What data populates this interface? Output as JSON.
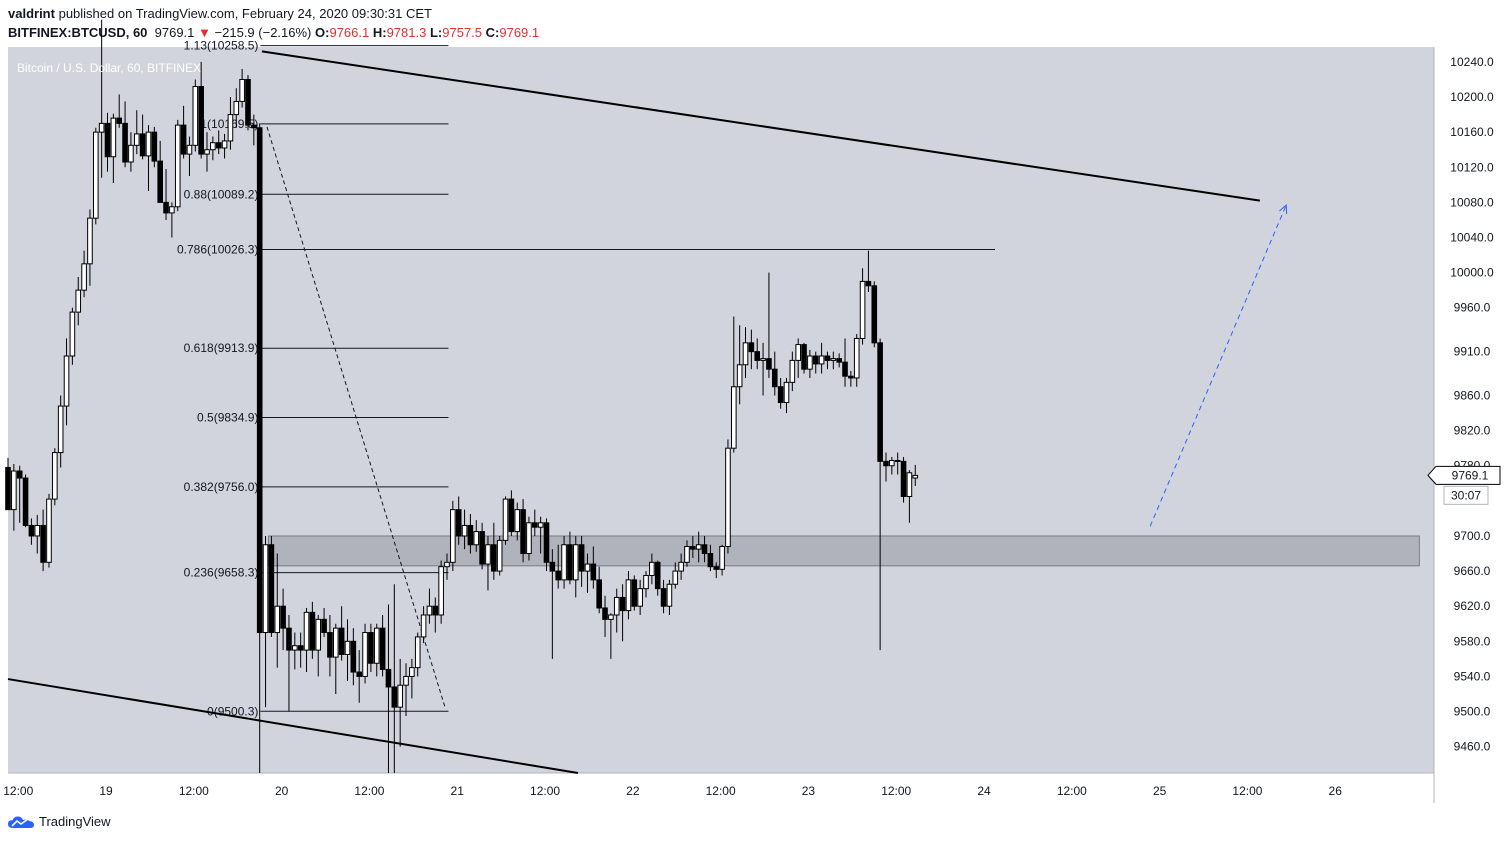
{
  "header": {
    "author": "valdrint",
    "published_text": "published on TradingView.com, February 24, 2020 09:30:31 CET",
    "symbol": "BITFINEX:BTCUSD, 60",
    "last": "9769.1",
    "change_arrow": "▼",
    "change": "−215.9 (−2.16%)",
    "o_label": "O:",
    "o_value": "9766.1",
    "h_label": "H:",
    "h_value": "9781.3",
    "l_label": "L:",
    "l_value": "9757.5",
    "c_label": "C:",
    "c_value": "9769.1"
  },
  "footer": {
    "brand": "TradingView",
    "icon": "tradingview-cloud-icon"
  },
  "chart_data": {
    "type": "candlestick",
    "title": "Bitcoin / U.S. Dollar, 60, BITFINEX",
    "x_tick_labels": [
      "12:00",
      "19",
      "12:00",
      "20",
      "12:00",
      "21",
      "12:00",
      "22",
      "12:00",
      "23",
      "12:00",
      "24",
      "12:00",
      "25",
      "12:00",
      "26"
    ],
    "x_tick_hours": [
      -12,
      0,
      12,
      24,
      36,
      48,
      60,
      72,
      84,
      96,
      108,
      120,
      132,
      144,
      156,
      168
    ],
    "xlim_hours": [
      -13.4,
      181.5
    ],
    "y_tick_labels": [
      "10240.0",
      "10200.0",
      "10160.0",
      "10120.0",
      "10080.0",
      "10040.0",
      "10000.0",
      "9960.0",
      "9910.0",
      "9860.0",
      "9820.0",
      "9780.0",
      "9700.0",
      "9660.0",
      "9620.0",
      "9580.0",
      "9540.0",
      "9500.0",
      "9460.0"
    ],
    "y_ticks": [
      10240,
      10200,
      10160,
      10120,
      10080,
      10040,
      10000,
      9960,
      9910,
      9860,
      9820,
      9780,
      9700,
      9660,
      9620,
      9580,
      9540,
      9500,
      9460
    ],
    "ylim": [
      9430,
      10257
    ],
    "current_price": {
      "label": "9769.1",
      "value": 9769.1,
      "countdown": "30:07"
    },
    "fib_levels": [
      {
        "label": "1.13(10258.5)",
        "value": 10258.5
      },
      {
        "label": "1(10169.5)",
        "value": 10169.5
      },
      {
        "label": "0.88(10089.2)",
        "value": 10089.2
      },
      {
        "label": "0.786(10026.3)",
        "value": 10026.3
      },
      {
        "label": "0.618(9913.9)",
        "value": 9913.9
      },
      {
        "label": "0.5(9834.9)",
        "value": 9834.9
      },
      {
        "label": "0.382(9756.0)",
        "value": 9756.0
      },
      {
        "label": "0.236(9658.3)",
        "value": 9658.3
      },
      {
        "label": "0(9500.3)",
        "value": 9500.3
      }
    ],
    "fib_x_hours": [
      21.1,
      46.8
    ],
    "fib_786_extend_hours": 121.5,
    "support_zone": {
      "from": 9666,
      "to": 9700,
      "x_hours": [
        22.2,
        179.5
      ]
    },
    "trendlines": [
      {
        "name": "upper-trendline",
        "points": [
          [
            21.3,
            10252
          ],
          [
            157.7,
            10082
          ]
        ]
      },
      {
        "name": "lower-trendline",
        "points": [
          [
            -13.4,
            9537
          ],
          [
            64.5,
            9430
          ]
        ]
      }
    ],
    "projection_line": {
      "points": [
        [
          142.7,
          9711
        ],
        [
          161.3,
          10077
        ]
      ]
    },
    "fib_drawdown_line": {
      "points": [
        [
          22.0,
          10166
        ],
        [
          46.4,
          9503
        ]
      ]
    },
    "candles": [
      [
        -13.4,
        9778,
        9789,
        9730,
        9730
      ],
      [
        -12.6,
        9730,
        9782,
        9706,
        9774
      ],
      [
        -11.8,
        9774,
        9780,
        9715,
        9766
      ],
      [
        -11.0,
        9766,
        9770,
        9710,
        9712
      ],
      [
        -10.2,
        9712,
        9720,
        9690,
        9700
      ],
      [
        -9.4,
        9700,
        9724,
        9680,
        9712
      ],
      [
        -8.6,
        9712,
        9730,
        9660,
        9670
      ],
      [
        -7.8,
        9670,
        9748,
        9664,
        9742
      ],
      [
        -7.0,
        9742,
        9800,
        9735,
        9795
      ],
      [
        -6.2,
        9795,
        9860,
        9778,
        9848
      ],
      [
        -5.4,
        9848,
        9925,
        9826,
        9905
      ],
      [
        -4.6,
        9905,
        9960,
        9895,
        9955
      ],
      [
        -3.8,
        9955,
        9995,
        9940,
        9980
      ],
      [
        -3.0,
        9980,
        10025,
        9972,
        10010
      ],
      [
        -2.2,
        10010,
        10072,
        9985,
        10062
      ],
      [
        -1.4,
        10062,
        10165,
        10055,
        10160
      ],
      [
        -0.6,
        10160,
        10288,
        10108,
        10170
      ],
      [
        0.2,
        10170,
        10182,
        10115,
        10132
      ],
      [
        1.0,
        10132,
        10181,
        10102,
        10176
      ],
      [
        1.8,
        10176,
        10203,
        10165,
        10170
      ],
      [
        2.6,
        10170,
        10195,
        10120,
        10126
      ],
      [
        3.4,
        10126,
        10160,
        10115,
        10145
      ],
      [
        4.2,
        10145,
        10185,
        10135,
        10158
      ],
      [
        5.0,
        10158,
        10180,
        10129,
        10133
      ],
      [
        5.8,
        10133,
        10168,
        10093,
        10160
      ],
      [
        6.6,
        10160,
        10166,
        10120,
        10127
      ],
      [
        7.4,
        10127,
        10150,
        10080,
        10080
      ],
      [
        8.2,
        10080,
        10118,
        10060,
        10068
      ],
      [
        9.0,
        10068,
        10080,
        10040,
        10075
      ],
      [
        9.8,
        10075,
        10174,
        10070,
        10168
      ],
      [
        10.6,
        10168,
        10190,
        10130,
        10135
      ],
      [
        11.4,
        10135,
        10155,
        10110,
        10145
      ],
      [
        12.2,
        10145,
        10220,
        10138,
        10212
      ],
      [
        13.0,
        10212,
        10240,
        10130,
        10135
      ],
      [
        13.8,
        10135,
        10160,
        10115,
        10140
      ],
      [
        14.6,
        10140,
        10155,
        10128,
        10148
      ],
      [
        15.4,
        10148,
        10162,
        10135,
        10142
      ],
      [
        16.2,
        10142,
        10158,
        10130,
        10150
      ],
      [
        17.0,
        10150,
        10200,
        10140,
        10180
      ],
      [
        17.8,
        10180,
        10210,
        10165,
        10195
      ],
      [
        18.6,
        10195,
        10232,
        10188,
        10220
      ],
      [
        19.4,
        10220,
        10225,
        10162,
        10168
      ],
      [
        20.2,
        10168,
        10180,
        10145,
        10165
      ],
      [
        21.0,
        10165,
        10170,
        9430,
        9590
      ],
      [
        21.8,
        9590,
        9700,
        9505,
        9690
      ],
      [
        22.6,
        9690,
        9700,
        9585,
        9590
      ],
      [
        23.4,
        9590,
        9680,
        9550,
        9620
      ],
      [
        24.2,
        9620,
        9640,
        9570,
        9595
      ],
      [
        25.0,
        9595,
        9610,
        9500,
        9570
      ],
      [
        25.8,
        9570,
        9590,
        9548,
        9575
      ],
      [
        26.6,
        9575,
        9590,
        9550,
        9570
      ],
      [
        27.4,
        9570,
        9618,
        9545,
        9613
      ],
      [
        28.2,
        9613,
        9625,
        9560,
        9570
      ],
      [
        29.0,
        9570,
        9610,
        9540,
        9605
      ],
      [
        29.8,
        9605,
        9618,
        9585,
        9590
      ],
      [
        30.6,
        9590,
        9610,
        9540,
        9562
      ],
      [
        31.4,
        9562,
        9600,
        9520,
        9595
      ],
      [
        32.2,
        9595,
        9620,
        9558,
        9565
      ],
      [
        33.0,
        9565,
        9605,
        9535,
        9580
      ],
      [
        33.8,
        9580,
        9595,
        9530,
        9545
      ],
      [
        34.6,
        9545,
        9570,
        9510,
        9540
      ],
      [
        35.4,
        9540,
        9600,
        9532,
        9590
      ],
      [
        36.2,
        9590,
        9600,
        9545,
        9555
      ],
      [
        37.0,
        9555,
        9600,
        9540,
        9595
      ],
      [
        37.8,
        9595,
        9610,
        9540,
        9548
      ],
      [
        38.6,
        9548,
        9622,
        9430,
        9528
      ],
      [
        39.4,
        9528,
        9645,
        9430,
        9505
      ],
      [
        40.2,
        9505,
        9560,
        9460,
        9530
      ],
      [
        41.0,
        9530,
        9555,
        9495,
        9540
      ],
      [
        41.8,
        9540,
        9560,
        9515,
        9550
      ],
      [
        42.6,
        9550,
        9590,
        9540,
        9585
      ],
      [
        43.4,
        9585,
        9620,
        9578,
        9610
      ],
      [
        44.2,
        9610,
        9640,
        9600,
        9620
      ],
      [
        45.0,
        9620,
        9630,
        9590,
        9610
      ],
      [
        45.8,
        9610,
        9672,
        9600,
        9665
      ],
      [
        46.6,
        9665,
        9680,
        9650,
        9670
      ],
      [
        47.4,
        9670,
        9740,
        9660,
        9730
      ],
      [
        48.2,
        9730,
        9745,
        9690,
        9700
      ],
      [
        49.0,
        9700,
        9730,
        9685,
        9712
      ],
      [
        49.8,
        9712,
        9725,
        9680,
        9690
      ],
      [
        50.6,
        9690,
        9718,
        9682,
        9705
      ],
      [
        51.4,
        9705,
        9715,
        9662,
        9668
      ],
      [
        52.2,
        9668,
        9700,
        9638,
        9690
      ],
      [
        53.0,
        9690,
        9715,
        9650,
        9660
      ],
      [
        53.8,
        9660,
        9700,
        9655,
        9695
      ],
      [
        54.6,
        9695,
        9745,
        9690,
        9742
      ],
      [
        55.4,
        9742,
        9752,
        9700,
        9705
      ],
      [
        56.2,
        9705,
        9738,
        9695,
        9730
      ],
      [
        57.0,
        9730,
        9742,
        9670,
        9680
      ],
      [
        57.8,
        9680,
        9722,
        9672,
        9715
      ],
      [
        58.6,
        9715,
        9730,
        9700,
        9710
      ],
      [
        59.4,
        9710,
        9722,
        9680,
        9715
      ],
      [
        60.2,
        9715,
        9720,
        9660,
        9670
      ],
      [
        61.0,
        9670,
        9685,
        9560,
        9660
      ],
      [
        61.8,
        9660,
        9690,
        9640,
        9650
      ],
      [
        62.6,
        9650,
        9700,
        9640,
        9690
      ],
      [
        63.4,
        9690,
        9705,
        9645,
        9650
      ],
      [
        64.2,
        9650,
        9700,
        9630,
        9690
      ],
      [
        65.0,
        9690,
        9700,
        9642,
        9660
      ],
      [
        65.8,
        9660,
        9680,
        9635,
        9668
      ],
      [
        66.6,
        9668,
        9688,
        9640,
        9650
      ],
      [
        67.4,
        9650,
        9665,
        9612,
        9618
      ],
      [
        68.2,
        9618,
        9632,
        9585,
        9605
      ],
      [
        69.0,
        9605,
        9612,
        9560,
        9610
      ],
      [
        69.8,
        9610,
        9640,
        9590,
        9630
      ],
      [
        70.6,
        9630,
        9645,
        9580,
        9615
      ],
      [
        71.4,
        9615,
        9660,
        9605,
        9650
      ],
      [
        72.2,
        9650,
        9655,
        9615,
        9620
      ],
      [
        73.0,
        9620,
        9650,
        9610,
        9640
      ],
      [
        73.8,
        9640,
        9660,
        9630,
        9655
      ],
      [
        74.6,
        9655,
        9680,
        9645,
        9670
      ],
      [
        75.4,
        9670,
        9672,
        9632,
        9640
      ],
      [
        76.2,
        9640,
        9650,
        9612,
        9620
      ],
      [
        77.0,
        9620,
        9650,
        9610,
        9645
      ],
      [
        77.8,
        9645,
        9670,
        9640,
        9660
      ],
      [
        78.6,
        9660,
        9680,
        9650,
        9670
      ],
      [
        79.4,
        9670,
        9695,
        9665,
        9688
      ],
      [
        80.2,
        9688,
        9700,
        9675,
        9685
      ],
      [
        81.0,
        9685,
        9705,
        9670,
        9690
      ],
      [
        81.8,
        9690,
        9700,
        9670,
        9680
      ],
      [
        82.6,
        9680,
        9690,
        9660,
        9665
      ],
      [
        83.4,
        9665,
        9670,
        9652,
        9662
      ],
      [
        84.2,
        9662,
        9690,
        9655,
        9688
      ],
      [
        85.0,
        9688,
        9810,
        9680,
        9800
      ],
      [
        85.8,
        9800,
        9950,
        9795,
        9870
      ],
      [
        86.6,
        9870,
        9940,
        9850,
        9895
      ],
      [
        87.4,
        9895,
        9938,
        9880,
        9920
      ],
      [
        88.2,
        9920,
        9935,
        9890,
        9910
      ],
      [
        89.0,
        9910,
        9925,
        9890,
        9900
      ],
      [
        89.8,
        9900,
        9920,
        9860,
        9902
      ],
      [
        90.6,
        9902,
        10000,
        9880,
        9890
      ],
      [
        91.4,
        9890,
        9910,
        9860,
        9870
      ],
      [
        92.2,
        9870,
        9880,
        9845,
        9852
      ],
      [
        93.0,
        9852,
        9880,
        9840,
        9875
      ],
      [
        93.8,
        9875,
        9910,
        9865,
        9900
      ],
      [
        94.6,
        9900,
        9925,
        9880,
        9918
      ],
      [
        95.4,
        9918,
        9920,
        9885,
        9890
      ],
      [
        96.2,
        9890,
        9912,
        9880,
        9905
      ],
      [
        97.0,
        9905,
        9910,
        9885,
        9896
      ],
      [
        97.8,
        9896,
        9920,
        9885,
        9905
      ],
      [
        98.6,
        9905,
        9910,
        9890,
        9900
      ],
      [
        99.4,
        9900,
        9910,
        9890,
        9902
      ],
      [
        100.2,
        9902,
        9908,
        9892,
        9898
      ],
      [
        101.0,
        9898,
        9925,
        9870,
        9882
      ],
      [
        101.8,
        9882,
        9888,
        9870,
        9880
      ],
      [
        102.6,
        9880,
        9930,
        9870,
        9925
      ],
      [
        103.4,
        9925,
        10005,
        9918,
        9990
      ],
      [
        104.2,
        9990,
        10025,
        9978,
        9985
      ],
      [
        105.0,
        9985,
        9990,
        9915,
        9920
      ],
      [
        105.8,
        9920,
        9925,
        9570,
        9785
      ],
      [
        106.6,
        9785,
        9795,
        9762,
        9780
      ],
      [
        107.4,
        9780,
        9790,
        9770,
        9786
      ],
      [
        108.2,
        9786,
        9795,
        9770,
        9785
      ],
      [
        109.0,
        9785,
        9790,
        9738,
        9745
      ],
      [
        109.8,
        9745,
        9775,
        9715,
        9772
      ],
      [
        110.6,
        9766,
        9781,
        9757,
        9769
      ]
    ]
  }
}
